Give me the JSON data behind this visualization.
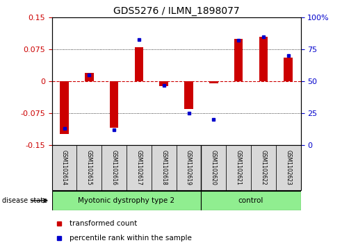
{
  "title": "GDS5276 / ILMN_1898077",
  "samples": [
    "GSM1102614",
    "GSM1102615",
    "GSM1102616",
    "GSM1102617",
    "GSM1102618",
    "GSM1102619",
    "GSM1102620",
    "GSM1102621",
    "GSM1102622",
    "GSM1102623"
  ],
  "transformed_count": [
    -0.125,
    0.02,
    -0.11,
    0.08,
    -0.012,
    -0.065,
    -0.005,
    0.1,
    0.105,
    0.055
  ],
  "percentile_rank": [
    13,
    55,
    12,
    83,
    47,
    25,
    20,
    82,
    85,
    70
  ],
  "groups": [
    {
      "label": "Myotonic dystrophy type 2",
      "start": 0,
      "end": 6,
      "color": "#90EE90"
    },
    {
      "label": "control",
      "start": 6,
      "end": 10,
      "color": "#90EE90"
    }
  ],
  "ylim_left": [
    -0.15,
    0.15
  ],
  "ylim_right": [
    0,
    100
  ],
  "yticks_left": [
    -0.15,
    -0.075,
    0,
    0.075,
    0.15
  ],
  "yticks_left_labels": [
    "-0.15",
    "-0.075",
    "0",
    "0.075",
    "0.15"
  ],
  "yticks_right": [
    0,
    25,
    50,
    75,
    100
  ],
  "yticks_right_labels": [
    "0",
    "25",
    "50",
    "75",
    "100%"
  ],
  "left_color": "#CC0000",
  "right_color": "#0000CC",
  "bar_color": "#CC0000",
  "dot_color": "#0000CC",
  "bg_color": "#d8d8d8",
  "legend_items": [
    "transformed count",
    "percentile rank within the sample"
  ],
  "disease_state_label": "disease state"
}
